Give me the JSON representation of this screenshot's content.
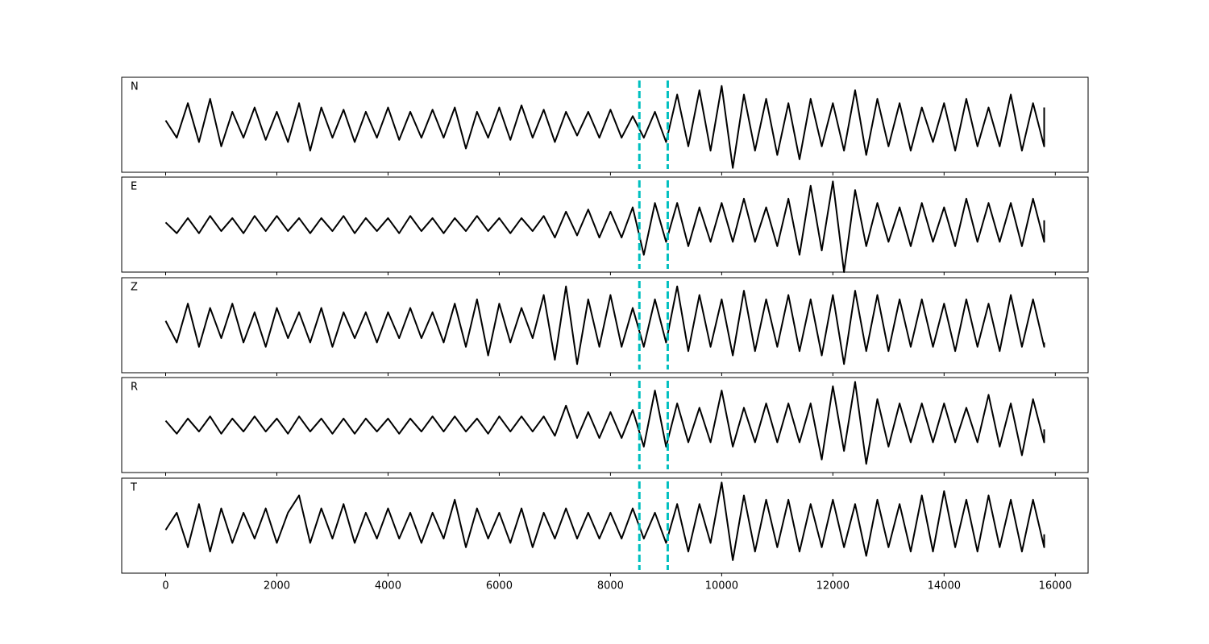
{
  "chart_data": {
    "type": "line",
    "x": [
      0,
      200,
      400,
      600,
      800,
      1000,
      1200,
      1400,
      1600,
      1800,
      2000,
      2200,
      2400,
      2600,
      2800,
      3000,
      3200,
      3400,
      3600,
      3800,
      4000,
      4200,
      4400,
      4600,
      4800,
      5000,
      5200,
      5400,
      5600,
      5800,
      6000,
      6200,
      6400,
      6600,
      6800,
      7000,
      7200,
      7400,
      7600,
      7800,
      8000,
      8200,
      8400,
      8600,
      8800,
      9000,
      9200,
      9400,
      9600,
      9800,
      10000,
      10200,
      10400,
      10600,
      10800,
      11000,
      11200,
      11400,
      11600,
      11800,
      12000,
      12200,
      12400,
      12600,
      12800,
      13000,
      13200,
      13400,
      13600,
      13800,
      14000,
      14200,
      14400,
      14600,
      14800,
      15000,
      15200,
      15400,
      15600,
      15800,
      15800
    ],
    "xlim": [
      -790,
      16590
    ],
    "xticks": [
      0,
      2000,
      4000,
      6000,
      8000,
      10000,
      12000,
      14000,
      16000
    ],
    "ylim": [
      -1.1,
      1.1
    ],
    "series": [
      {
        "name": "N",
        "color": "#000000",
        "values": [
          0.1,
          -0.3,
          0.5,
          -0.4,
          0.6,
          -0.5,
          0.3,
          -0.3,
          0.4,
          -0.35,
          0.3,
          -0.4,
          0.5,
          -0.6,
          0.4,
          -0.3,
          0.35,
          -0.4,
          0.3,
          -0.3,
          0.4,
          -0.35,
          0.3,
          -0.3,
          0.35,
          -0.3,
          0.4,
          -0.55,
          0.3,
          -0.3,
          0.4,
          -0.35,
          0.45,
          -0.3,
          0.35,
          -0.4,
          0.3,
          -0.25,
          0.3,
          -0.3,
          0.35,
          -0.3,
          0.2,
          -0.3,
          0.3,
          -0.4,
          0.7,
          -0.5,
          0.8,
          -0.6,
          0.9,
          -1.0,
          0.7,
          -0.6,
          0.6,
          -0.7,
          0.5,
          -0.8,
          0.6,
          -0.5,
          0.5,
          -0.6,
          0.8,
          -0.7,
          0.6,
          -0.5,
          0.5,
          -0.6,
          0.4,
          -0.4,
          0.5,
          -0.6,
          0.6,
          -0.5,
          0.4,
          -0.5,
          0.7,
          -0.6,
          0.5,
          -0.5,
          0.4
        ]
      },
      {
        "name": "E",
        "color": "#000000",
        "values": [
          0.05,
          -0.2,
          0.15,
          -0.2,
          0.2,
          -0.15,
          0.15,
          -0.2,
          0.2,
          -0.15,
          0.2,
          -0.15,
          0.15,
          -0.2,
          0.15,
          -0.15,
          0.2,
          -0.2,
          0.15,
          -0.15,
          0.15,
          -0.2,
          0.2,
          -0.15,
          0.15,
          -0.2,
          0.15,
          -0.15,
          0.2,
          -0.15,
          0.15,
          -0.2,
          0.15,
          -0.15,
          0.2,
          -0.3,
          0.3,
          -0.25,
          0.35,
          -0.3,
          0.3,
          -0.3,
          0.4,
          -0.7,
          0.5,
          -0.4,
          0.5,
          -0.5,
          0.4,
          -0.4,
          0.5,
          -0.4,
          0.6,
          -0.4,
          0.4,
          -0.5,
          0.6,
          -0.7,
          0.9,
          -0.6,
          1.0,
          -1.1,
          0.8,
          -0.5,
          0.5,
          -0.4,
          0.4,
          -0.5,
          0.5,
          -0.4,
          0.4,
          -0.5,
          0.6,
          -0.4,
          0.5,
          -0.4,
          0.5,
          -0.5,
          0.6,
          -0.4,
          0.1
        ]
      },
      {
        "name": "Z",
        "color": "#000000",
        "values": [
          0.1,
          -0.4,
          0.5,
          -0.5,
          0.4,
          -0.3,
          0.5,
          -0.4,
          0.3,
          -0.5,
          0.4,
          -0.3,
          0.3,
          -0.4,
          0.4,
          -0.5,
          0.3,
          -0.3,
          0.3,
          -0.4,
          0.3,
          -0.3,
          0.4,
          -0.3,
          0.3,
          -0.4,
          0.5,
          -0.5,
          0.6,
          -0.7,
          0.5,
          -0.4,
          0.4,
          -0.3,
          0.7,
          -0.8,
          0.9,
          -0.9,
          0.6,
          -0.5,
          0.7,
          -0.5,
          0.4,
          -0.5,
          0.6,
          -0.4,
          0.9,
          -0.6,
          0.7,
          -0.5,
          0.6,
          -0.7,
          0.8,
          -0.6,
          0.6,
          -0.5,
          0.7,
          -0.6,
          0.6,
          -0.7,
          0.7,
          -0.9,
          0.8,
          -0.6,
          0.7,
          -0.6,
          0.6,
          -0.5,
          0.6,
          -0.5,
          0.5,
          -0.6,
          0.6,
          -0.5,
          0.5,
          -0.6,
          0.7,
          -0.5,
          0.6,
          -0.5,
          -0.4
        ]
      },
      {
        "name": "R",
        "color": "#000000",
        "values": [
          0.1,
          -0.2,
          0.15,
          -0.15,
          0.2,
          -0.2,
          0.15,
          -0.15,
          0.2,
          -0.15,
          0.15,
          -0.2,
          0.2,
          -0.15,
          0.15,
          -0.2,
          0.15,
          -0.2,
          0.15,
          -0.15,
          0.15,
          -0.2,
          0.15,
          -0.15,
          0.2,
          -0.15,
          0.2,
          -0.15,
          0.15,
          -0.2,
          0.2,
          -0.15,
          0.2,
          -0.15,
          0.2,
          -0.25,
          0.45,
          -0.3,
          0.3,
          -0.3,
          0.3,
          -0.3,
          0.35,
          -0.5,
          0.8,
          -0.5,
          0.5,
          -0.4,
          0.4,
          -0.4,
          0.8,
          -0.5,
          0.4,
          -0.4,
          0.5,
          -0.4,
          0.5,
          -0.4,
          0.5,
          -0.8,
          0.9,
          -0.6,
          1.0,
          -0.9,
          0.6,
          -0.5,
          0.5,
          -0.4,
          0.5,
          -0.4,
          0.5,
          -0.4,
          0.4,
          -0.4,
          0.7,
          -0.5,
          0.5,
          -0.7,
          0.6,
          -0.4,
          -0.1
        ]
      },
      {
        "name": "T",
        "color": "#000000",
        "values": [
          -0.1,
          0.3,
          -0.5,
          0.5,
          -0.6,
          0.4,
          -0.4,
          0.3,
          -0.3,
          0.4,
          -0.4,
          0.3,
          0.7,
          -0.4,
          0.4,
          -0.3,
          0.5,
          -0.4,
          0.3,
          -0.3,
          0.4,
          -0.3,
          0.3,
          -0.4,
          0.3,
          -0.3,
          0.6,
          -0.5,
          0.4,
          -0.3,
          0.3,
          -0.4,
          0.4,
          -0.5,
          0.3,
          -0.3,
          0.4,
          -0.3,
          0.3,
          -0.3,
          0.3,
          -0.3,
          0.4,
          -0.3,
          0.3,
          -0.4,
          0.5,
          -0.6,
          0.5,
          -0.4,
          1.0,
          -0.8,
          0.7,
          -0.6,
          0.6,
          -0.5,
          0.6,
          -0.6,
          0.5,
          -0.5,
          0.6,
          -0.5,
          0.5,
          -0.7,
          0.6,
          -0.5,
          0.5,
          -0.6,
          0.7,
          -0.6,
          0.8,
          -0.5,
          0.6,
          -0.6,
          0.7,
          -0.5,
          0.6,
          -0.6,
          0.6,
          -0.5,
          -0.2
        ]
      }
    ],
    "vlines": {
      "values": [
        8520,
        9030
      ],
      "color": "#00bfbf",
      "style": "dashed"
    }
  }
}
